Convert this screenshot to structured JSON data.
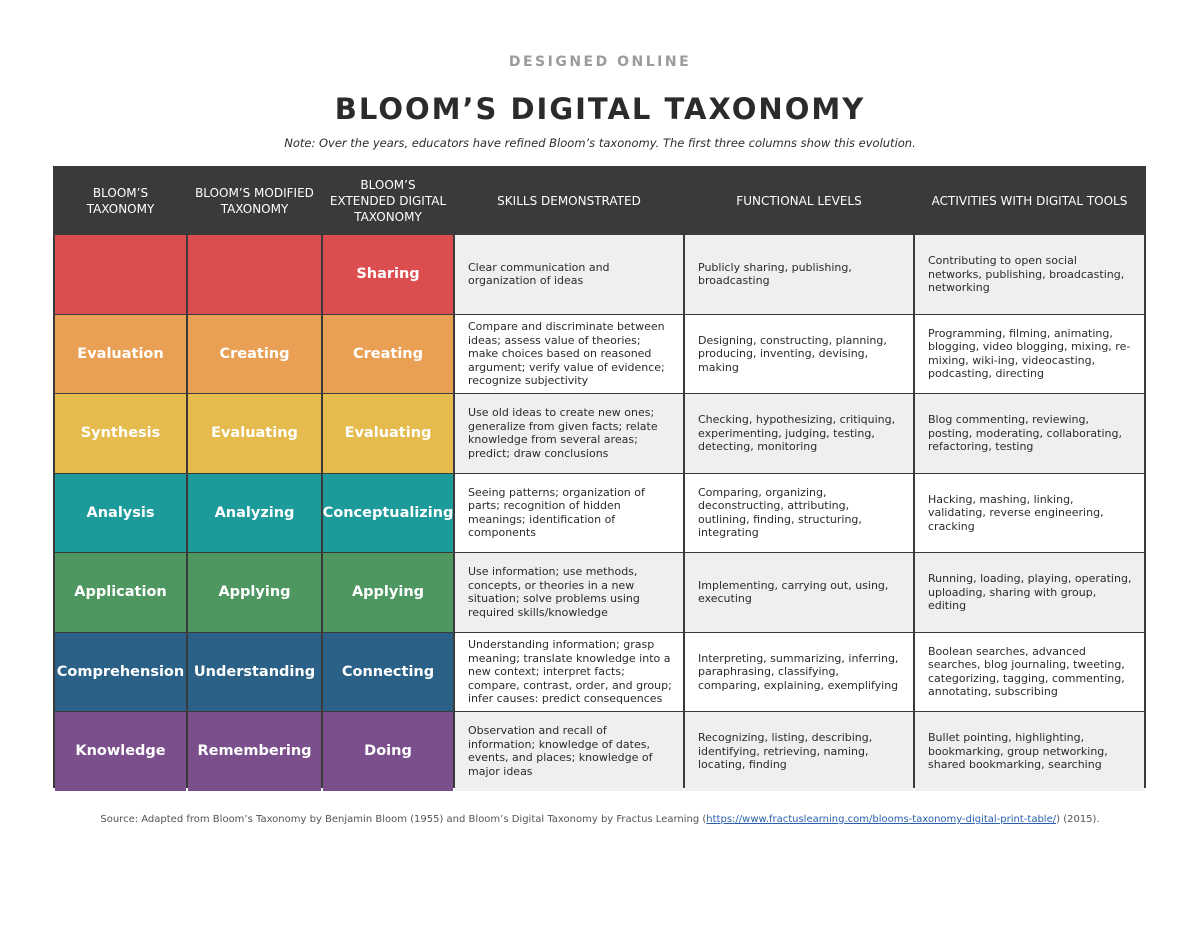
{
  "header": {
    "brand": "DESIGNED ONLINE",
    "title": "BLOOM’S DIGITAL TAXONOMY",
    "note": "Note: Over the years, educators have refined Bloom’s taxonomy. The first three columns show this evolution."
  },
  "columns": [
    "BLOOM’S TAXONOMY",
    "BLOOM’S MODIFIED TAXONOMY",
    "BLOOM’S EXTENDED DIGITAL TAXONOMY",
    "SKILLS DEMONSTRATED",
    "FUNCTIONAL LEVELS",
    "ACTIVITIES WITH DIGITAL TOOLS"
  ],
  "rows": [
    {
      "color": "#dc4d4f",
      "bloom": "",
      "modified": "",
      "extended": "Sharing",
      "skills": "Clear communication and organization of ideas",
      "functional": "Publicly sharing, publishing, broadcasting",
      "activities": "Contributing to open social networks, publishing, broadcasting, networking"
    },
    {
      "color": "#e9a055",
      "bloom": "Evaluation",
      "modified": "Creating",
      "extended": "Creating",
      "skills": "Compare and discriminate between ideas; assess value of theories; make choices based on reasoned argument; verify value of evidence; recognize subjectivity",
      "functional": "Designing, constructing, planning, producing, inventing, devising, making",
      "activities": "Programming, filming, animating, blogging, video blogging, mixing, re-mixing, wiki-ing, videocasting, podcasting, directing"
    },
    {
      "color": "#e6bb4e",
      "bloom": "Synthesis",
      "modified": "Evaluating",
      "extended": "Evaluating",
      "skills": "Use old ideas to create new ones; generalize from given facts; relate knowledge from several areas; predict; draw conclusions",
      "functional": "Checking, hypothesizing, critiquing, experimenting, judging, testing, detecting, monitoring",
      "activities": "Blog commenting, reviewing, posting, moderating, collaborating, refactoring, testing"
    },
    {
      "color": "#1d9a9a",
      "bloom": "Analysis",
      "modified": "Analyzing",
      "extended": "Conceptualizing",
      "skills": "Seeing patterns; organization of parts; recognition of hidden meanings; identification of components",
      "functional": "Comparing, organizing, deconstructing, attributing, outlining, finding, structuring, integrating",
      "activities": "Hacking, mashing, linking, validating, reverse engineering, cracking"
    },
    {
      "color": "#4f9761",
      "bloom": "Application",
      "modified": "Applying",
      "extended": "Applying",
      "skills": "Use information; use methods, concepts, or theories in a new situation; solve problems using required skills/knowledge",
      "functional": "Implementing, carrying out, using, executing",
      "activities": "Running, loading, playing, operating, uploading, sharing with group, editing"
    },
    {
      "color": "#2b6186",
      "bloom": "Comprehension",
      "modified": "Understanding",
      "extended": "Connecting",
      "skills": "Understanding information; grasp meaning; translate knowledge into a new context; interpret facts; compare, contrast, order, and group; infer causes: predict consequences",
      "functional": "Interpreting, summarizing, inferring, paraphrasing, classifying, comparing, explaining, exemplifying",
      "activities": "Boolean searches, advanced searches, blog journaling, tweeting, categorizing, tagging, commenting, annotating, subscribing"
    },
    {
      "color": "#7a4f8c",
      "bloom": "Knowledge",
      "modified": "Remembering",
      "extended": "Doing",
      "skills": "Observation and recall of information; knowledge of dates, events, and places; knowledge of major ideas",
      "functional": "Recognizing, listing, describing, identifying, retrieving, naming, locating, finding",
      "activities": "Bullet pointing, highlighting, bookmarking, group networking, shared bookmarking, searching"
    }
  ],
  "footer": {
    "source_prefix": "Source: Adapted from Bloom’s Taxonomy by Benjamin Bloom (1955) and Bloom’s Digital Taxonomy by Fractus Learning (",
    "source_link": "https://www.fractuslearning.com/blooms-taxonomy-digital-print-table/",
    "source_suffix": ") (2015)."
  }
}
